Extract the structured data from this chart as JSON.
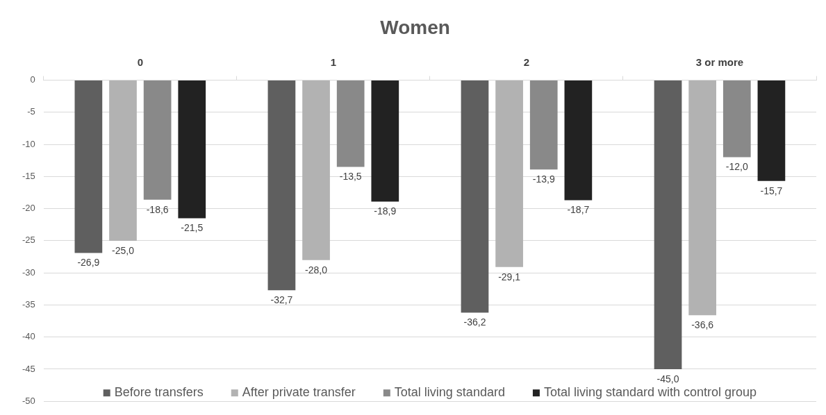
{
  "chart_data": {
    "type": "bar",
    "title": "Women",
    "categories": [
      "0",
      "1",
      "2",
      "3 or more"
    ],
    "series": [
      {
        "name": "Before transfers",
        "color": "#5f5f5f",
        "values": [
          -26.9,
          -32.7,
          -36.2,
          -45.0
        ],
        "value_labels": [
          "-26,9",
          "-32,7",
          "-36,2",
          "-45,0"
        ]
      },
      {
        "name": "After private transfer",
        "color": "#b2b2b2",
        "values": [
          -25.0,
          -28.0,
          -29.1,
          -36.6
        ],
        "value_labels": [
          "-25,0",
          "-28,0",
          "-29,1",
          "-36,6"
        ]
      },
      {
        "name": "Total living standard",
        "color": "#898989",
        "values": [
          -18.6,
          -13.5,
          -13.9,
          -12.0
        ],
        "value_labels": [
          "-18,6",
          "-13,5",
          "-13,9",
          "-12,0"
        ]
      },
      {
        "name": "Total living standard with control group",
        "color": "#222222",
        "values": [
          -21.5,
          -18.9,
          -18.7,
          -15.7
        ],
        "value_labels": [
          "-21,5",
          "-18,9",
          "-18,7",
          "-15,7"
        ]
      }
    ],
    "ylim": [
      -50,
      0
    ],
    "yticks": [
      0,
      -5,
      -10,
      -15,
      -20,
      -25,
      -30,
      -35,
      -40,
      -45,
      -50
    ],
    "grid": "y",
    "legend": "bottom"
  }
}
